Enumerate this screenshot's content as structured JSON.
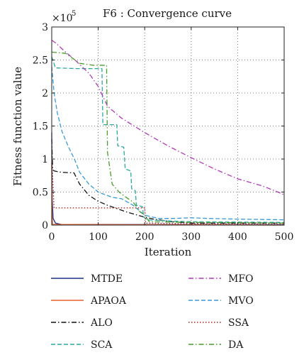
{
  "chart_data": {
    "type": "line",
    "title": "F6 : Convergence curve",
    "xlabel": "Iteration",
    "ylabel": "Fitness function value",
    "y_multiplier_label": "×10",
    "y_multiplier_exponent": "5",
    "xlim": [
      0,
      500
    ],
    "ylim": [
      0,
      3
    ],
    "y_unit_scale": 100000,
    "grid": true,
    "grid_style": "dotted",
    "legend_placement": "below",
    "x_ticks": [
      0,
      100,
      200,
      300,
      400,
      500
    ],
    "x_tick_labels": [
      "0",
      "100",
      "200",
      "300",
      "400",
      "500"
    ],
    "y_ticks": [
      0,
      0.5,
      1,
      1.5,
      2,
      2.5,
      3
    ],
    "y_tick_labels": [
      "0",
      "0.5",
      "1",
      "1.5",
      "2",
      "2.5",
      "3"
    ],
    "series": [
      {
        "name": "MTDE",
        "color": "#1f2f8a",
        "dash": "solid",
        "points": [
          [
            0,
            1.4
          ],
          [
            1,
            0.4
          ],
          [
            3,
            0.1
          ],
          [
            8,
            0.03
          ],
          [
            20,
            0.01
          ],
          [
            500,
            0.005
          ]
        ]
      },
      {
        "name": "APAOA",
        "color": "#e8602c",
        "dash": "solid",
        "points": [
          [
            0,
            0.95
          ],
          [
            1,
            0.1
          ],
          [
            2,
            0.01
          ],
          [
            500,
            0.0
          ]
        ]
      },
      {
        "name": "ALO",
        "color": "#111111",
        "dash": "dashdot",
        "points": [
          [
            0,
            1.3
          ],
          [
            2,
            0.85
          ],
          [
            5,
            0.82
          ],
          [
            20,
            0.8
          ],
          [
            48,
            0.79
          ],
          [
            60,
            0.62
          ],
          [
            80,
            0.45
          ],
          [
            100,
            0.36
          ],
          [
            120,
            0.3
          ],
          [
            140,
            0.25
          ],
          [
            160,
            0.2
          ],
          [
            180,
            0.16
          ],
          [
            200,
            0.12
          ],
          [
            220,
            0.09
          ],
          [
            240,
            0.07
          ],
          [
            260,
            0.05
          ],
          [
            280,
            0.04
          ],
          [
            300,
            0.03
          ],
          [
            400,
            0.03
          ],
          [
            500,
            0.03
          ]
        ]
      },
      {
        "name": "SCA",
        "color": "#2aa8a0",
        "dash": "dashed",
        "points": [
          [
            0,
            2.55
          ],
          [
            8,
            2.38
          ],
          [
            55,
            2.37
          ],
          [
            108,
            2.37
          ],
          [
            110,
            1.52
          ],
          [
            140,
            1.52
          ],
          [
            142,
            1.2
          ],
          [
            155,
            1.18
          ],
          [
            158,
            0.85
          ],
          [
            170,
            0.82
          ],
          [
            172,
            0.55
          ],
          [
            180,
            0.52
          ],
          [
            182,
            0.3
          ],
          [
            195,
            0.28
          ],
          [
            198,
            0.12
          ],
          [
            205,
            0.08
          ],
          [
            260,
            0.06
          ],
          [
            300,
            0.05
          ],
          [
            500,
            0.04
          ]
        ]
      },
      {
        "name": "MFO",
        "color": "#b03ab8",
        "dash": "dashdot",
        "points": [
          [
            0,
            2.8
          ],
          [
            10,
            2.75
          ],
          [
            25,
            2.65
          ],
          [
            50,
            2.5
          ],
          [
            80,
            2.3
          ],
          [
            100,
            2.1
          ],
          [
            120,
            1.8
          ],
          [
            150,
            1.62
          ],
          [
            200,
            1.4
          ],
          [
            250,
            1.2
          ],
          [
            300,
            1.02
          ],
          [
            350,
            0.85
          ],
          [
            400,
            0.7
          ],
          [
            450,
            0.6
          ],
          [
            480,
            0.52
          ],
          [
            500,
            0.46
          ]
        ]
      },
      {
        "name": "MVO",
        "color": "#3a9ad9",
        "dash": "dashed",
        "points": [
          [
            0,
            2.4
          ],
          [
            5,
            2.0
          ],
          [
            12,
            1.7
          ],
          [
            22,
            1.42
          ],
          [
            35,
            1.2
          ],
          [
            50,
            0.98
          ],
          [
            60,
            0.8
          ],
          [
            80,
            0.62
          ],
          [
            100,
            0.5
          ],
          [
            130,
            0.42
          ],
          [
            150,
            0.4
          ],
          [
            175,
            0.3
          ],
          [
            200,
            0.15
          ],
          [
            230,
            0.1
          ],
          [
            260,
            0.1
          ],
          [
            300,
            0.11
          ],
          [
            340,
            0.1
          ],
          [
            400,
            0.09
          ],
          [
            500,
            0.08
          ]
        ]
      },
      {
        "name": "SSA",
        "color": "#a82020",
        "dash": "dotted",
        "points": [
          [
            0,
            1.05
          ],
          [
            5,
            0.26
          ],
          [
            60,
            0.26
          ],
          [
            120,
            0.26
          ],
          [
            200,
            0.26
          ],
          [
            202,
            0.03
          ],
          [
            300,
            0.02
          ],
          [
            500,
            0.02
          ]
        ]
      },
      {
        "name": "DA",
        "color": "#4a9c2a",
        "dash": "dashdot",
        "points": [
          [
            0,
            2.62
          ],
          [
            30,
            2.6
          ],
          [
            60,
            2.45
          ],
          [
            90,
            2.42
          ],
          [
            118,
            2.42
          ],
          [
            120,
            1.1
          ],
          [
            130,
            0.62
          ],
          [
            145,
            0.5
          ],
          [
            160,
            0.42
          ],
          [
            175,
            0.35
          ],
          [
            190,
            0.2
          ],
          [
            200,
            0.15
          ],
          [
            210,
            0.05
          ],
          [
            300,
            0.04
          ],
          [
            500,
            0.03
          ]
        ]
      }
    ]
  }
}
